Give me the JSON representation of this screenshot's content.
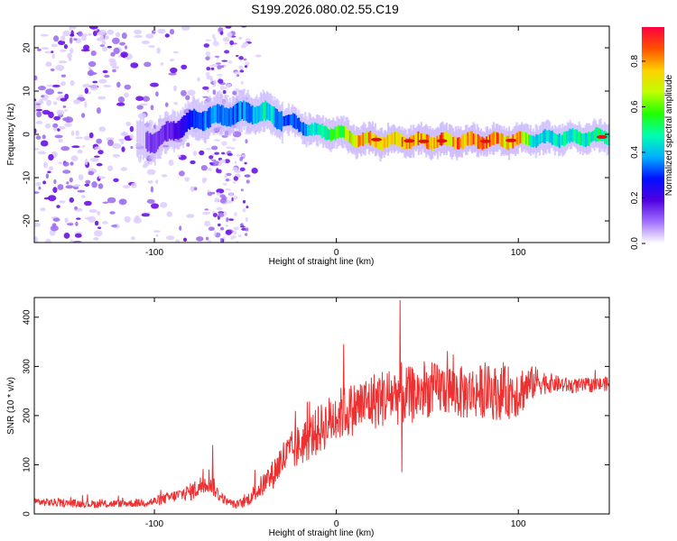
{
  "title": "S199.2026.080.02.55.C19",
  "chart_data": [
    {
      "type": "heatmap",
      "name": "spectrogram",
      "xlabel": "Height of straight line (km)",
      "ylabel": "Frequency (Hz)",
      "xlim": [
        -166,
        150
      ],
      "ylim": [
        -25,
        25
      ],
      "xticks": [
        -100,
        0,
        100
      ],
      "xtick_labels": [
        "-100",
        "0",
        "100"
      ],
      "yticks": [
        -20,
        -10,
        0,
        10,
        20
      ],
      "ytick_labels": [
        "-20",
        "-10",
        "0",
        "10",
        "20"
      ],
      "colorbar": {
        "label": "Normalized spectral amplitude",
        "range": [
          0,
          0.95
        ],
        "ticks": [
          0,
          0.2,
          0.4,
          0.6,
          0.8
        ],
        "tick_labels": [
          "0.0",
          "0.2",
          "0.4",
          "0.6",
          "0.8"
        ]
      },
      "ridge": {
        "x": [
          -100,
          -90,
          -80,
          -70,
          -60,
          -50,
          -40,
          -30,
          -20,
          -10,
          0,
          10,
          20,
          40,
          60,
          80,
          100,
          110,
          130,
          150
        ],
        "frequency": [
          -1.5,
          1.0,
          3.0,
          4.0,
          4.5,
          5.0,
          5.0,
          3.5,
          2.0,
          0.5,
          0.5,
          -1.0,
          -1.5,
          -1.5,
          -1.5,
          -1.5,
          -1.3,
          -1.0,
          -0.8,
          -0.5
        ],
        "amplitude": [
          0.15,
          0.2,
          0.3,
          0.4,
          0.35,
          0.4,
          0.5,
          0.35,
          0.35,
          0.5,
          0.6,
          0.8,
          0.85,
          0.9,
          0.9,
          0.9,
          0.85,
          0.45,
          0.5,
          0.55
        ]
      }
    },
    {
      "type": "line",
      "name": "snr",
      "xlabel": "Height of straight line (km)",
      "ylabel": "SNR (10 * v/v)",
      "xlim": [
        -166,
        150
      ],
      "ylim": [
        0,
        440
      ],
      "xticks": [
        -100,
        0,
        100
      ],
      "xtick_labels": [
        "-100",
        "0",
        "100"
      ],
      "yticks": [
        0,
        100,
        200,
        300,
        400
      ],
      "ytick_labels": [
        "0",
        "100",
        "200",
        "300",
        "400"
      ],
      "series": [
        {
          "name": "SNR",
          "color": "#ee3030",
          "x": [
            -166,
            -150,
            -130,
            -110,
            -100,
            -90,
            -80,
            -75,
            -70,
            -65,
            -60,
            -55,
            -50,
            -40,
            -35,
            -30,
            -20,
            -10,
            0,
            10,
            20,
            30,
            35,
            40,
            50,
            60,
            70,
            80,
            90,
            100,
            110,
            120,
            130,
            140,
            150
          ],
          "y": [
            25,
            22,
            20,
            22,
            25,
            35,
            45,
            55,
            70,
            40,
            25,
            18,
            25,
            60,
            80,
            110,
            140,
            170,
            200,
            215,
            230,
            240,
            245,
            240,
            250,
            255,
            245,
            250,
            245,
            250,
            270,
            265,
            260,
            262,
            265
          ],
          "noise": [
            8,
            8,
            8,
            8,
            10,
            12,
            18,
            22,
            25,
            14,
            8,
            8,
            12,
            25,
            30,
            40,
            45,
            50,
            55,
            55,
            60,
            60,
            65,
            60,
            55,
            55,
            55,
            55,
            55,
            55,
            30,
            18,
            15,
            15,
            15
          ],
          "peaks": [
            {
              "x": -68,
              "y": 140
            },
            {
              "x": 35,
              "y": 435
            },
            {
              "x": 36,
              "y": 85
            },
            {
              "x": 4,
              "y": 345
            }
          ]
        }
      ]
    }
  ]
}
